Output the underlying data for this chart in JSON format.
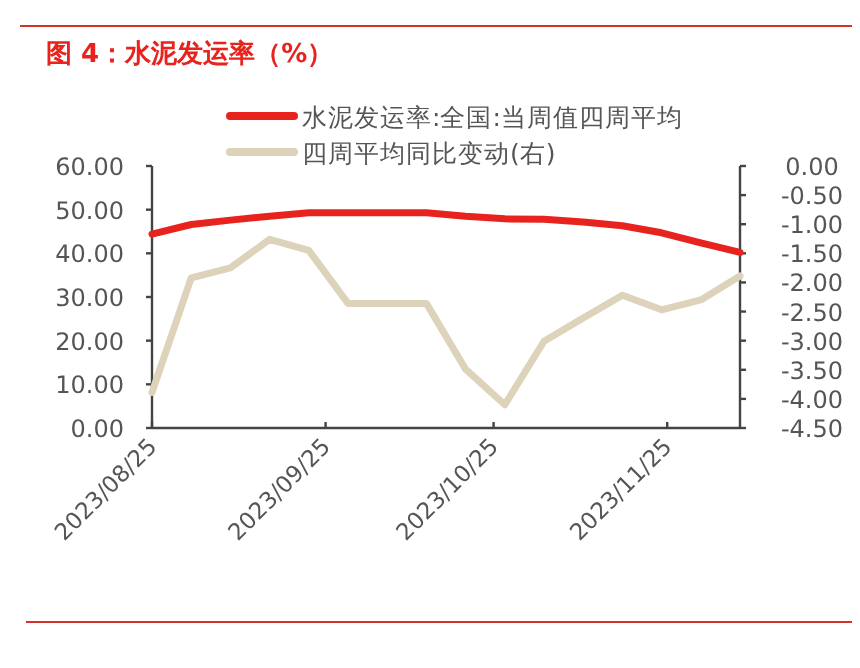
{
  "chart_data": {
    "type": "line",
    "title": "图 4：水泥发运率（%）",
    "x": [
      "2023-08-25",
      "2023-09-01",
      "2023-09-08",
      "2023-09-15",
      "2023-09-22",
      "2023-09-29",
      "2023-10-06",
      "2023-10-13",
      "2023-10-20",
      "2023-10-27",
      "2023-11-03",
      "2023-11-10",
      "2023-11-17",
      "2023-11-24",
      "2023-12-01",
      "2023-12-08"
    ],
    "series": [
      {
        "name": "水泥发运率:全国:当周值四周平均",
        "color": "#e8231e",
        "values": [
          44.4,
          46.6,
          47.6,
          48.5,
          49.3,
          49.3,
          49.3,
          49.3,
          48.5,
          47.9,
          47.8,
          47.2,
          46.3,
          44.7,
          42.4,
          40.2
        ]
      },
      {
        "name": "四周平均同比变动(右)",
        "color": "#ddd3bb",
        "axis": "y2",
        "values": [
          -3.89,
          -1.92,
          -1.75,
          -1.26,
          -1.45,
          -2.36,
          -2.36,
          -2.36,
          -3.49,
          -4.1,
          -3.01,
          -2.61,
          -2.22,
          -2.47,
          -2.3,
          -1.89
        ]
      }
    ],
    "xlim": [
      "2023-08-25",
      "2023-12-08"
    ],
    "xticks": [
      {
        "value": "2023-08-25",
        "label": "2023/08/25"
      },
      {
        "value": "2023-09-25",
        "label": "2023/09/25"
      },
      {
        "value": "2023-10-25",
        "label": "2023/10/25"
      },
      {
        "value": "2023-11-25",
        "label": "2023/11/25"
      }
    ],
    "ylim": [
      0,
      60
    ],
    "yticks": [
      {
        "value": 0,
        "label": "0.00"
      },
      {
        "value": 10,
        "label": "10.00"
      },
      {
        "value": 20,
        "label": "20.00"
      },
      {
        "value": 30,
        "label": "30.00"
      },
      {
        "value": 40,
        "label": "40.00"
      },
      {
        "value": 50,
        "label": "50.00"
      },
      {
        "value": 60,
        "label": "60.00"
      }
    ],
    "y2lim": [
      -4.5,
      0
    ],
    "y2ticks": [
      {
        "value": -4.5,
        "label": "-4.50"
      },
      {
        "value": -4,
        "label": "-4.00"
      },
      {
        "value": -3.5,
        "label": "-3.50"
      },
      {
        "value": -3,
        "label": "-3.00"
      },
      {
        "value": -2.5,
        "label": "-2.50"
      },
      {
        "value": -2,
        "label": "-2.00"
      },
      {
        "value": -1.5,
        "label": "-1.50"
      },
      {
        "value": -1,
        "label": "-1.00"
      },
      {
        "value": -0.5,
        "label": "-0.50"
      },
      {
        "value": 0,
        "label": "0.00"
      }
    ],
    "legend": "top",
    "grid": false,
    "marker": "none",
    "line_style": "solid"
  }
}
